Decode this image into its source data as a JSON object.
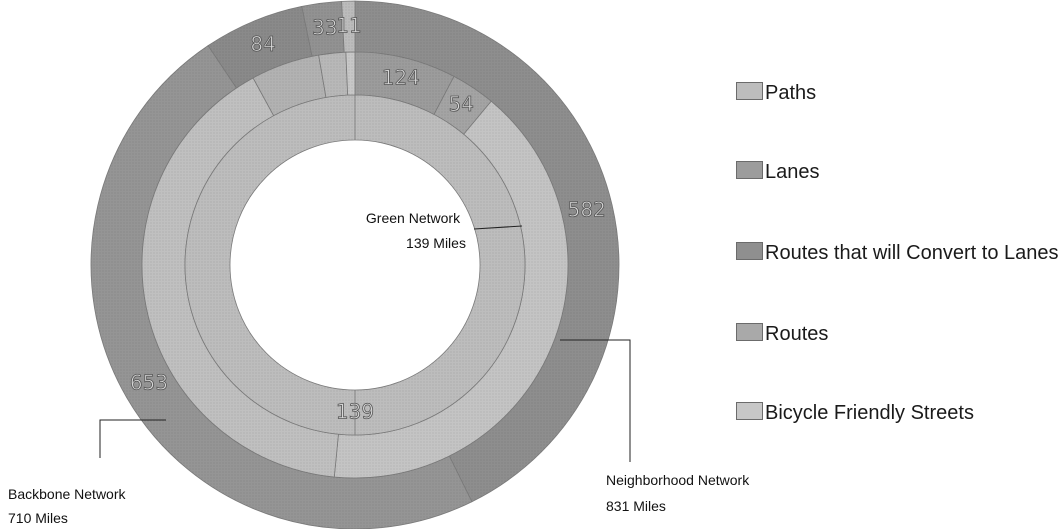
{
  "chart_data": {
    "type": "donut",
    "legend_position": "right",
    "legend": [
      {
        "label": "Paths",
        "color": "#bdbdbd"
      },
      {
        "label": "Lanes",
        "color": "#9c9c9c"
      },
      {
        "label": "Routes that will Convert to Lanes",
        "color": "#8f8f8f"
      },
      {
        "label": "Routes",
        "color": "#a9a9a9"
      },
      {
        "label": "Bicycle Friendly Streets",
        "color": "#c7c7c7"
      }
    ],
    "inner_ring": {
      "name": "Green Network",
      "segments": [
        {
          "category": "Paths",
          "value": 139,
          "label": "139",
          "color": "#bdbdbd"
        }
      ]
    },
    "outer_ring": {
      "segments": [
        {
          "category": "Lanes",
          "value": 124,
          "label": "124",
          "color": "#9c9c9c"
        },
        {
          "category": "Routes that will Convert to Lanes",
          "value": 54,
          "label": "54",
          "color": "#a4a4a4"
        },
        {
          "category": "Bicycle Friendly Streets",
          "value": 653,
          "label": "",
          "color": "#c4c4c4"
        },
        {
          "category": "Paths",
          "value": 653,
          "label": "",
          "color": "#c0c0c0"
        },
        {
          "category": "Routes that will Convert to Lanes",
          "value": 84,
          "label": "",
          "color": "#b2b2b2"
        },
        {
          "category": "Lanes",
          "value": 33,
          "label": "",
          "color": "#b8b8b8"
        },
        {
          "category": "Paths",
          "value": 11,
          "label": "",
          "color": "#c8c8c8"
        }
      ]
    },
    "rim_ring": {
      "segments": [
        {
          "category": "Routes",
          "value": 582,
          "label": "582",
          "color": "#8e8e8e"
        },
        {
          "category": "Routes",
          "value": 653,
          "label": "653",
          "color": "#959595"
        },
        {
          "category": "Routes that will Convert to Lanes",
          "value": 84,
          "label": "84",
          "color": "#8a8a8a"
        },
        {
          "category": "Lanes",
          "value": 33,
          "label": "33",
          "color": "#929292"
        },
        {
          "category": "Paths",
          "value": 11,
          "label": "11",
          "color": "#bcbcbc"
        }
      ]
    },
    "annotations": [
      {
        "title": "Green Network",
        "subtitle": "139 Miles"
      },
      {
        "title": "Backbone Network",
        "subtitle": "710 Miles"
      },
      {
        "title": "Neighborhood Network",
        "subtitle": "831 Miles"
      }
    ]
  }
}
